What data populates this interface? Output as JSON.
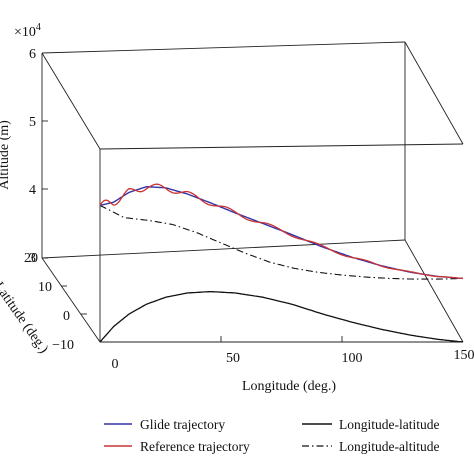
{
  "chart_data": {
    "type": "line",
    "projection": "3d",
    "xlabel": "Longitude (deg.)",
    "ylabel": "Latitude (deg.)",
    "zlabel": "Altitude (m)",
    "z_multiplier": "×10",
    "z_multiplier_exp": "4",
    "xlim": [
      0,
      150
    ],
    "ylim": [
      -10,
      20
    ],
    "zlim": [
      3,
      6
    ],
    "x_ticks": [
      "0",
      "50",
      "100",
      "150"
    ],
    "y_ticks": [
      "20",
      "10",
      "0",
      "−10"
    ],
    "z_ticks": [
      "6",
      "5",
      "4",
      "3"
    ],
    "grid": false,
    "legend_position": "bottom",
    "series": [
      {
        "name": "Glide trajectory",
        "color": "#3333aa",
        "style": "solid",
        "longitude": [
          0,
          10,
          20,
          30,
          40,
          50,
          60,
          70,
          80,
          90,
          100,
          110,
          120,
          130,
          140,
          150
        ],
        "latitude": [
          -10,
          -4.5,
          0,
          3.5,
          6,
          7.5,
          8,
          7.5,
          6,
          3.5,
          0,
          -3,
          -5.5,
          -7.5,
          -9,
          -10
        ],
        "altitude": [
          5.0,
          4.82,
          4.78,
          4.72,
          4.6,
          4.45,
          4.3,
          4.17,
          4.08,
          4.02,
          3.98,
          3.95,
          3.93,
          3.92,
          3.92,
          3.93
        ]
      },
      {
        "name": "Reference trajectory",
        "color": "#cc3333",
        "style": "solid",
        "oscillation_amplitude": 0.06,
        "oscillation_cycles": 9.5,
        "longitude": [
          0,
          10,
          20,
          30,
          40,
          50,
          60,
          70,
          80,
          90,
          100,
          110,
          120,
          130,
          140,
          150
        ],
        "latitude": [
          -10,
          -4.5,
          0,
          3.5,
          6,
          7.5,
          8,
          7.5,
          6,
          3.5,
          0,
          -3,
          -5.5,
          -7.5,
          -9,
          -10
        ],
        "altitude": [
          5.0,
          4.82,
          4.78,
          4.72,
          4.6,
          4.45,
          4.3,
          4.17,
          4.08,
          4.02,
          3.98,
          3.95,
          3.93,
          3.92,
          3.92,
          3.93
        ]
      },
      {
        "name": "Longitude-latitude",
        "color": "#111111",
        "style": "solid",
        "x": [
          0,
          10,
          20,
          30,
          40,
          50,
          60,
          70,
          80,
          90,
          100,
          110,
          120,
          130,
          140,
          150
        ],
        "y": [
          -10,
          -4.5,
          0,
          3.5,
          6,
          7.5,
          8,
          7.5,
          6,
          3.5,
          0,
          -3,
          -5.5,
          -7.5,
          -9,
          -10
        ]
      },
      {
        "name": "Longitude-altitude",
        "color": "#111111",
        "style": "dashdot",
        "x": [
          0,
          10,
          20,
          30,
          40,
          50,
          60,
          70,
          80,
          90,
          100,
          110,
          120,
          130,
          140,
          150
        ],
        "y": [
          5.0,
          4.82,
          4.78,
          4.72,
          4.6,
          4.45,
          4.3,
          4.17,
          4.08,
          4.02,
          3.98,
          3.95,
          3.93,
          3.92,
          3.92,
          3.93
        ]
      }
    ]
  }
}
